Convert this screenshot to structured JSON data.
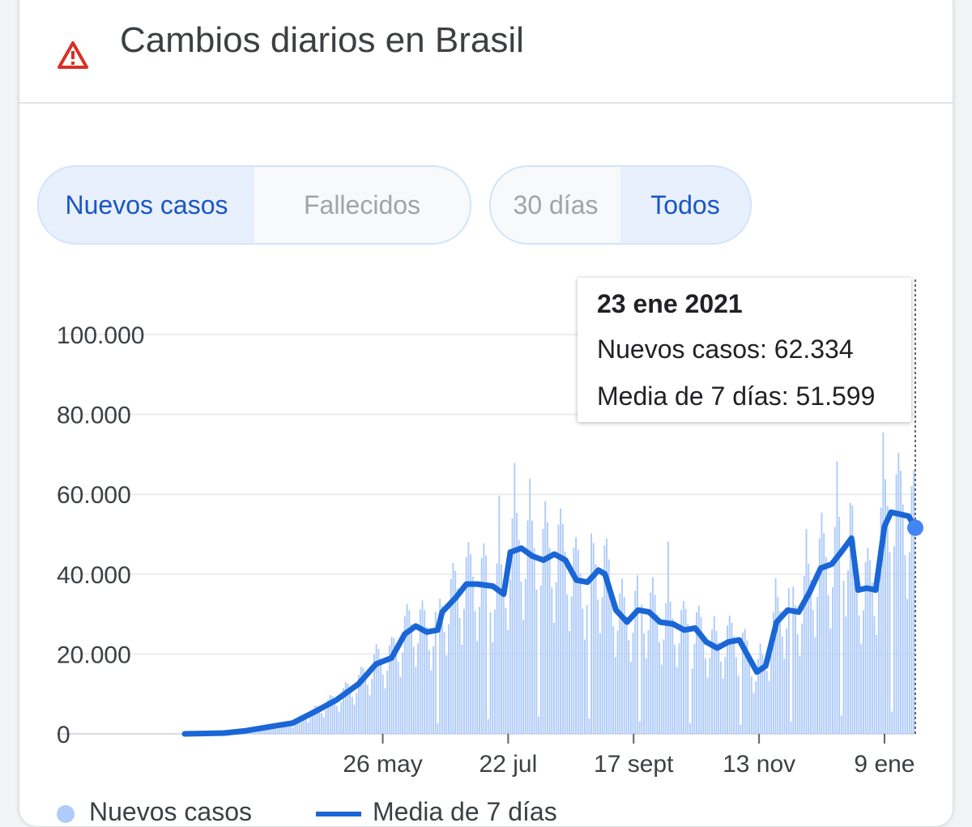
{
  "header": {
    "title": "Cambios diarios en Brasil",
    "icon": "warning-triangle-icon",
    "icon_color": "#d93025"
  },
  "metric_toggle": {
    "options": [
      "Nuevos casos",
      "Fallecidos"
    ],
    "selected": "Nuevos casos"
  },
  "range_toggle": {
    "options": [
      "30 días",
      "Todos"
    ],
    "selected": "Todos"
  },
  "tooltip": {
    "date": "23 ene 2021",
    "cases_line": "Nuevos casos: 62.334",
    "avg_line": "Media de 7 días: 51.599"
  },
  "legend": {
    "cases": "Nuevos casos",
    "avg": "Media de 7 días"
  },
  "colors": {
    "bars": "#aecbfa",
    "line": "#1a66d6",
    "point": "#4285f4",
    "active_text": "#1a56c4"
  },
  "chart_data": {
    "type": "bar",
    "x_range": [
      "2020-02-26",
      "2021-01-23"
    ],
    "ylim": [
      0,
      100000
    ],
    "y_ticks": [
      "100.000",
      "80.000",
      "60.000",
      "40.000",
      "20.000",
      "0"
    ],
    "y_tick_values": [
      100000,
      80000,
      60000,
      40000,
      20000,
      0
    ],
    "x_ticks": [
      {
        "label": "26 may",
        "date": "2020-05-26"
      },
      {
        "label": "22 jul",
        "date": "2020-07-22"
      },
      {
        "label": "17 sept",
        "date": "2020-09-17"
      },
      {
        "label": "13 nov",
        "date": "2020-11-13"
      },
      {
        "label": "9 ene",
        "date": "2021-01-09"
      }
    ],
    "series": [
      {
        "name": "Nuevos casos",
        "kind": "bar",
        "points": [
          [
            "2020-04-01",
            1200
          ],
          [
            "2020-04-15",
            3000
          ],
          [
            "2020-05-01",
            7500
          ],
          [
            "2020-05-10",
            10000
          ],
          [
            "2020-05-20",
            17000
          ],
          [
            "2020-05-26",
            19000
          ],
          [
            "2020-06-05",
            30000
          ],
          [
            "2020-06-12",
            25000
          ],
          [
            "2020-06-19",
            54800
          ],
          [
            "2020-06-26",
            36000
          ],
          [
            "2020-07-03",
            45000
          ],
          [
            "2020-07-10",
            45000
          ],
          [
            "2020-07-22",
            67000
          ],
          [
            "2020-07-29",
            69000
          ],
          [
            "2020-08-05",
            57000
          ],
          [
            "2020-08-12",
            60000
          ],
          [
            "2020-08-19",
            49000
          ],
          [
            "2020-08-26",
            45000
          ],
          [
            "2020-09-02",
            45000
          ],
          [
            "2020-09-10",
            40000
          ],
          [
            "2020-09-17",
            36000
          ],
          [
            "2020-09-24",
            33000
          ],
          [
            "2020-10-01",
            55000
          ],
          [
            "2020-10-08",
            31000
          ],
          [
            "2020-10-15",
            28000
          ],
          [
            "2020-10-22",
            30000
          ],
          [
            "2020-10-29",
            28000
          ],
          [
            "2020-11-05",
            27000
          ],
          [
            "2020-11-13",
            20000
          ],
          [
            "2020-11-20",
            38000
          ],
          [
            "2020-11-27",
            45000
          ],
          [
            "2020-12-04",
            51000
          ],
          [
            "2020-12-11",
            53000
          ],
          [
            "2020-12-18",
            70000
          ],
          [
            "2020-12-25",
            58000
          ],
          [
            "2021-01-01",
            33000
          ],
          [
            "2021-01-07",
            78500
          ],
          [
            "2021-01-14",
            68000
          ],
          [
            "2021-01-23",
            62334
          ]
        ]
      },
      {
        "name": "Media de 7 días",
        "kind": "line",
        "points": [
          [
            "2020-02-26",
            0
          ],
          [
            "2020-03-15",
            200
          ],
          [
            "2020-03-25",
            800
          ],
          [
            "2020-04-05",
            1800
          ],
          [
            "2020-04-15",
            2700
          ],
          [
            "2020-04-25",
            5500
          ],
          [
            "2020-05-05",
            8500
          ],
          [
            "2020-05-15",
            12500
          ],
          [
            "2020-05-23",
            17500
          ],
          [
            "2020-05-30",
            19000
          ],
          [
            "2020-06-05",
            25000
          ],
          [
            "2020-06-10",
            27000
          ],
          [
            "2020-06-15",
            25500
          ],
          [
            "2020-06-20",
            26000
          ],
          [
            "2020-06-22",
            30500
          ],
          [
            "2020-06-28",
            34000
          ],
          [
            "2020-07-03",
            37500
          ],
          [
            "2020-07-08",
            37500
          ],
          [
            "2020-07-15",
            37000
          ],
          [
            "2020-07-20",
            35000
          ],
          [
            "2020-07-23",
            45500
          ],
          [
            "2020-07-28",
            46500
          ],
          [
            "2020-08-02",
            44500
          ],
          [
            "2020-08-07",
            43500
          ],
          [
            "2020-08-12",
            45000
          ],
          [
            "2020-08-17",
            43500
          ],
          [
            "2020-08-22",
            38500
          ],
          [
            "2020-08-27",
            38000
          ],
          [
            "2020-09-01",
            41000
          ],
          [
            "2020-09-04",
            40000
          ],
          [
            "2020-09-09",
            31000
          ],
          [
            "2020-09-14",
            28000
          ],
          [
            "2020-09-19",
            31000
          ],
          [
            "2020-09-24",
            30500
          ],
          [
            "2020-09-29",
            28000
          ],
          [
            "2020-10-05",
            27500
          ],
          [
            "2020-10-10",
            26000
          ],
          [
            "2020-10-15",
            26500
          ],
          [
            "2020-10-20",
            23000
          ],
          [
            "2020-10-25",
            21500
          ],
          [
            "2020-10-30",
            23000
          ],
          [
            "2020-11-04",
            23500
          ],
          [
            "2020-11-09",
            18500
          ],
          [
            "2020-11-12",
            15500
          ],
          [
            "2020-11-16",
            17000
          ],
          [
            "2020-11-21",
            28000
          ],
          [
            "2020-11-26",
            31000
          ],
          [
            "2020-12-01",
            30500
          ],
          [
            "2020-12-06",
            35500
          ],
          [
            "2020-12-11",
            41500
          ],
          [
            "2020-12-16",
            42500
          ],
          [
            "2020-12-21",
            46000
          ],
          [
            "2020-12-25",
            49000
          ],
          [
            "2020-12-28",
            36000
          ],
          [
            "2021-01-01",
            36500
          ],
          [
            "2021-01-05",
            36000
          ],
          [
            "2021-01-09",
            52000
          ],
          [
            "2021-01-12",
            55500
          ],
          [
            "2021-01-16",
            55000
          ],
          [
            "2021-01-20",
            54500
          ],
          [
            "2021-01-23",
            51599
          ]
        ]
      }
    ]
  }
}
